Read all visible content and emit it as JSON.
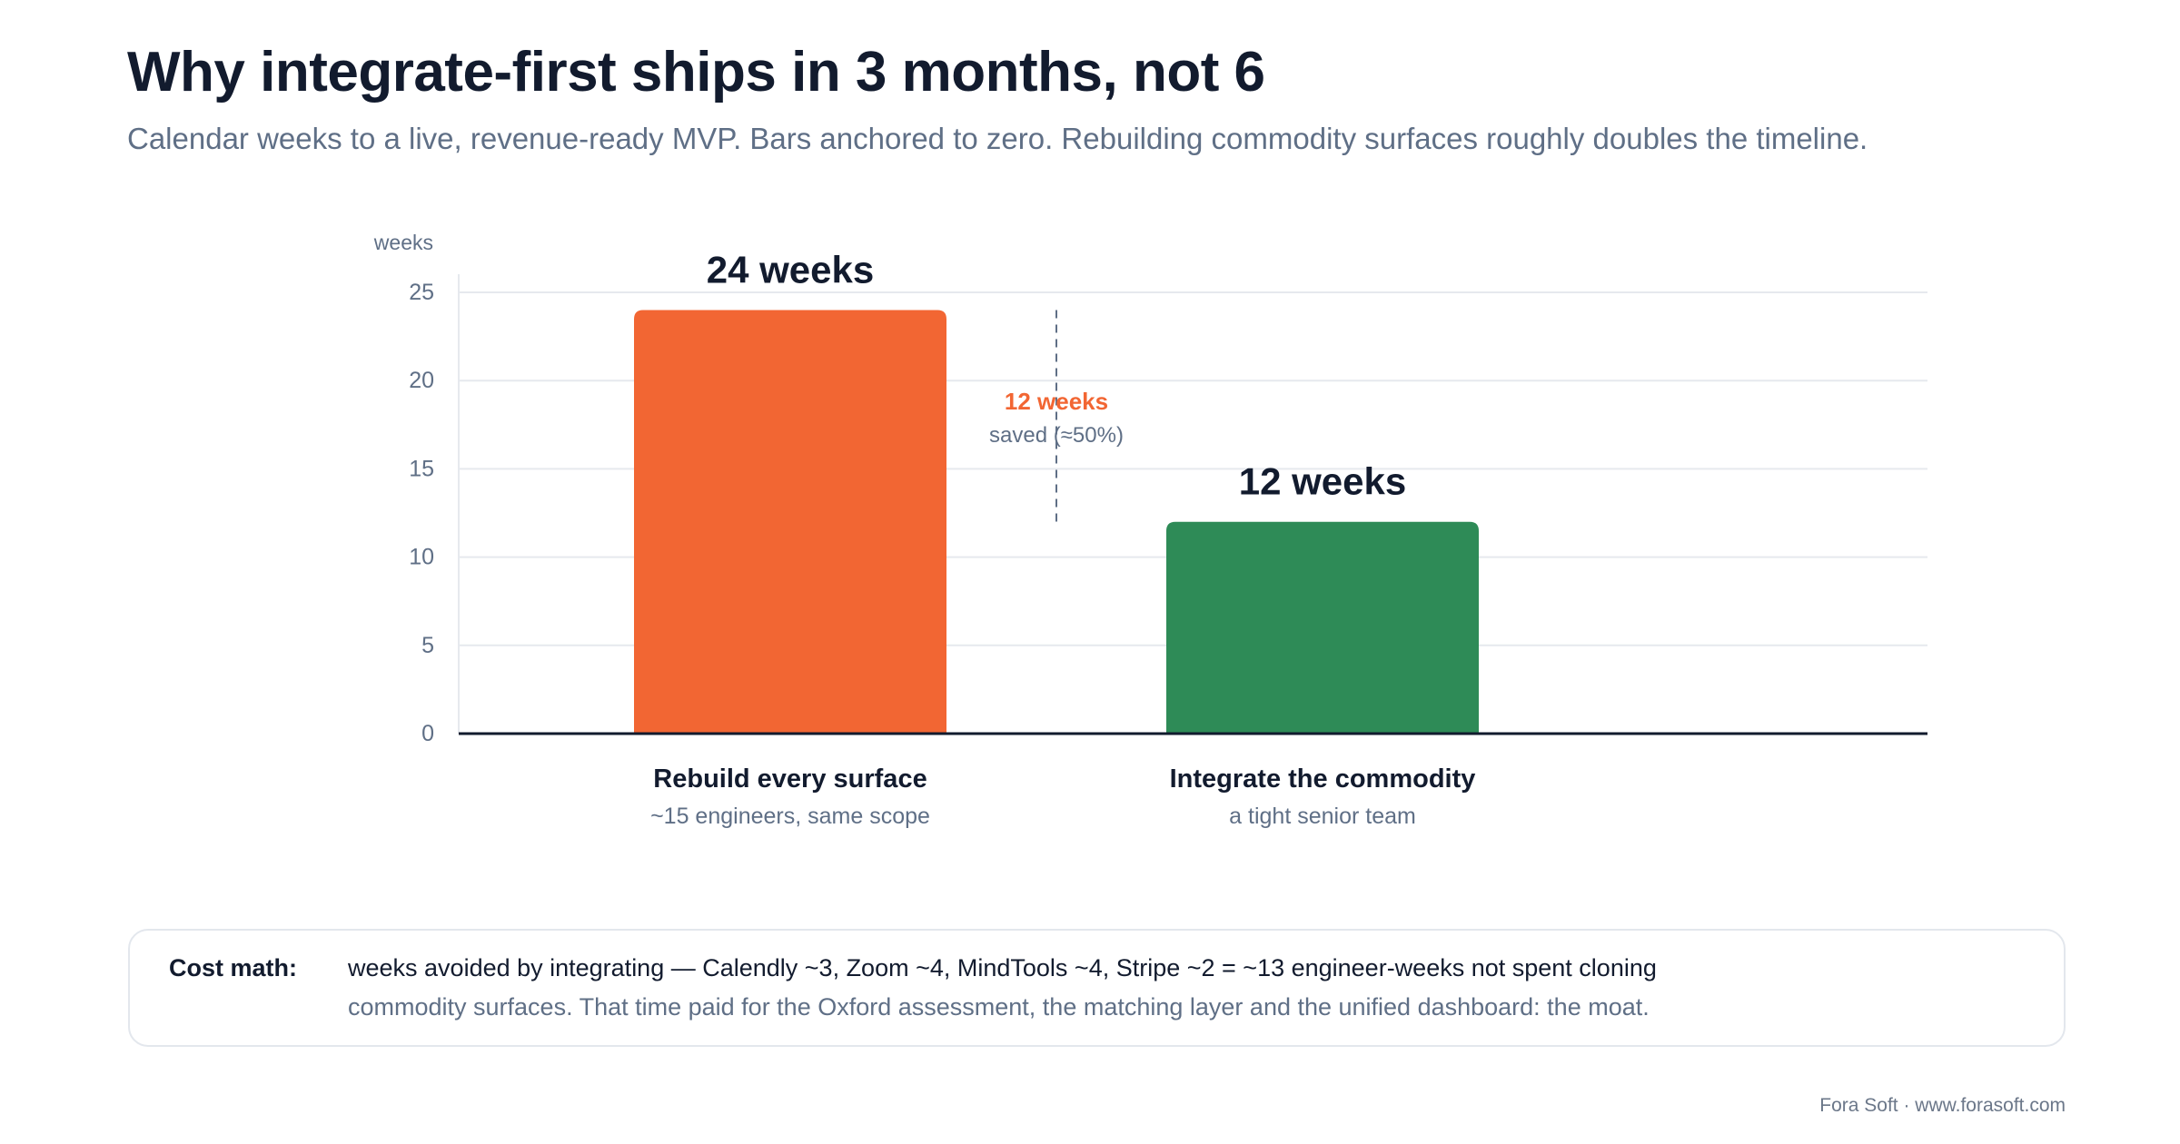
{
  "header": {
    "title": "Why integrate-first ships in 3 months, not 6",
    "subtitle": "Calendar weeks to a live, revenue-ready MVP. Bars anchored to zero. Rebuilding commodity surfaces roughly doubles the timeline."
  },
  "chart_data": {
    "type": "bar",
    "title": "",
    "ylabel": "weeks",
    "xlabel": "",
    "ylim": [
      0,
      25
    ],
    "yticks": [
      0,
      5,
      10,
      15,
      20,
      25
    ],
    "grid": true,
    "categories": [
      "Rebuild every surface",
      "Integrate the commodity"
    ],
    "category_sublabels": [
      "~15 engineers, same scope",
      "a tight senior team"
    ],
    "values": [
      24,
      12
    ],
    "data_labels": [
      "24 weeks",
      "12 weeks"
    ],
    "bar_colors": [
      "#f26633",
      "#2e8b57"
    ],
    "annotation": {
      "from_value": 24,
      "to_value": 12,
      "label": "12 weeks",
      "sublabel": "saved (≈50%)",
      "label_color": "#f26633"
    }
  },
  "cost_box": {
    "label": "Cost math:",
    "line1": "weeks avoided by integrating — Calendly ~3, Zoom ~4, MindTools ~4, Stripe ~2 = ~13 engineer-weeks not spent cloning",
    "line2": "commodity surfaces. That time paid for the Oxford assessment, the matching layer and the unified dashboard: the moat."
  },
  "footer": {
    "credit": "Fora Soft · www.forasoft.com"
  }
}
